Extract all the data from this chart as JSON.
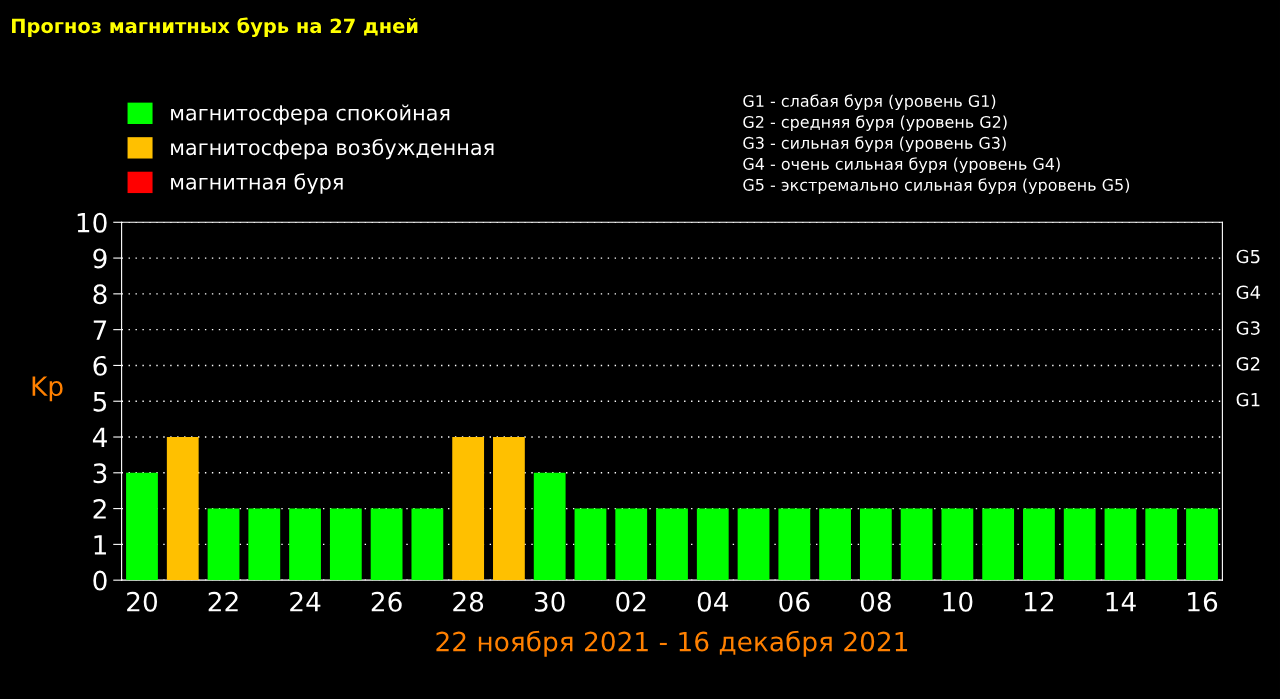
{
  "chart_data": {
    "type": "bar",
    "title": "Прогноз магнитных бурь на 27 дней",
    "xlabel": "22 ноября 2021 - 16 декабря 2021",
    "ylabel": "Kp",
    "categories": [
      "20",
      null,
      "22",
      null,
      "24",
      null,
      "26",
      null,
      "28",
      null,
      "30",
      null,
      "02",
      null,
      "04",
      null,
      "06",
      null,
      "08",
      null,
      "10",
      null,
      "12",
      null,
      "14",
      null,
      "16"
    ],
    "series": [
      {
        "name": "магнитосфера спокойная",
        "color": "#00ff00",
        "values": [
          3,
          null,
          2,
          2,
          2,
          2,
          2,
          2,
          null,
          null,
          3,
          2,
          2,
          2,
          2,
          2,
          2,
          2,
          2,
          2,
          2,
          2,
          2,
          2,
          2,
          2,
          2
        ]
      },
      {
        "name": "магнитосфера возбужденная",
        "color": "#ffc000",
        "values": [
          null,
          4,
          null,
          null,
          null,
          null,
          null,
          null,
          4,
          4,
          null,
          null,
          null,
          null,
          null,
          null,
          null,
          null,
          null,
          null,
          null,
          null,
          null,
          null,
          null,
          null,
          null
        ]
      },
      {
        "name": "магнитная буря",
        "color": "#ff0000",
        "values": [
          null,
          null,
          null,
          null,
          null,
          null,
          null,
          null,
          null,
          null,
          null,
          null,
          null,
          null,
          null,
          null,
          null,
          null,
          null,
          null,
          null,
          null,
          null,
          null,
          null,
          null,
          null
        ]
      }
    ],
    "ylim": [
      0,
      10
    ],
    "yticks": [
      0,
      1,
      2,
      3,
      4,
      5,
      6,
      7,
      8,
      9,
      10
    ],
    "grid": "y",
    "legend": "top left",
    "annotations": [
      "G1 - слабая буря (уровень G1)",
      "G2 - средняя буря (уровень G2)",
      "G3 - сильная буря (уровень G3)",
      "G4 - очень сильная буря (уровень G4)",
      "G5 - экстремально сильная буря (уровень G5)",
      "G5",
      "G4",
      "G3",
      "G2",
      "G1"
    ]
  }
}
